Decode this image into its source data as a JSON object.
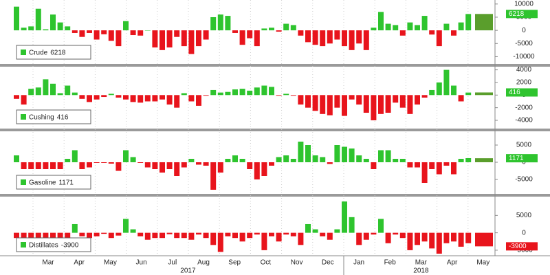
{
  "chart_data": [
    {
      "type": "bar",
      "name": "Crude",
      "color": "#2ec42e",
      "negative_color": "#e8141c",
      "ylim": [
        -12500,
        11000
      ],
      "yticks": [
        -10000,
        -5000,
        0,
        5000,
        10000
      ],
      "values": [
        9000,
        1000,
        1500,
        8200,
        400,
        6000,
        3000,
        1500,
        -1000,
        -2500,
        -1000,
        -3500,
        -1500,
        -4000,
        -6000,
        3500,
        -1800,
        -2000,
        0,
        -6500,
        -7500,
        -6500,
        -2500,
        -6000,
        -9000,
        -6000,
        -3500,
        5000,
        6000,
        5500,
        -1000,
        -5500,
        -3000,
        -6000,
        700,
        1000,
        -500,
        2500,
        2000,
        -2000,
        -4500,
        -5500,
        -6000,
        -5000,
        -3500,
        -6000,
        -7500,
        -5000,
        -7500,
        1000,
        7000,
        2500,
        2000,
        -2000,
        3000,
        2000,
        5500,
        -1600,
        -6000,
        2500,
        -2000,
        3000,
        6200,
        6218
      ]
    },
    {
      "type": "bar",
      "name": "Cushing",
      "color": "#2ec42e",
      "negative_color": "#e8141c",
      "ylim": [
        -5200,
        4500
      ],
      "yticks": [
        -4000,
        -2000,
        0,
        2000,
        4000
      ],
      "values": [
        -600,
        -1500,
        1000,
        1200,
        2500,
        1800,
        300,
        1500,
        400,
        -600,
        -1100,
        -700,
        -300,
        200,
        -400,
        -700,
        -1100,
        -1200,
        -1000,
        -1000,
        -700,
        -1500,
        -2000,
        300,
        -1000,
        -1700,
        -100,
        800,
        400,
        500,
        900,
        1000,
        700,
        1200,
        1500,
        1300,
        -100,
        200,
        -100,
        -1500,
        -2000,
        -2500,
        -3000,
        -3200,
        -2000,
        -3300,
        -700,
        -1500,
        -2800,
        -4000,
        -3000,
        -2800,
        -1200,
        -2000,
        -3000,
        -1500,
        -400,
        800,
        2000,
        4000,
        1500,
        -1000,
        400,
        416
      ]
    },
    {
      "type": "bar",
      "name": "Gasoline",
      "color": "#2ec42e",
      "negative_color": "#e8141c",
      "ylim": [
        -9000,
        9000
      ],
      "yticks": [
        -5000,
        0,
        5000
      ],
      "values": [
        2000,
        -2000,
        -2000,
        -2000,
        -2000,
        -2000,
        -2000,
        1000,
        3500,
        -2000,
        -1500,
        -200,
        -200,
        -400,
        -2500,
        3500,
        1500,
        -200,
        -1500,
        -2000,
        -3000,
        -2000,
        -4000,
        -1500,
        1000,
        -700,
        -1000,
        -8000,
        -3000,
        1000,
        2000,
        1000,
        -2000,
        -5000,
        -4000,
        -1000,
        1500,
        2000,
        1000,
        6000,
        5000,
        2000,
        1500,
        -500,
        5000,
        4500,
        4000,
        2000,
        1000,
        -2000,
        3500,
        3500,
        1000,
        1000,
        -1500,
        -1500,
        -6000,
        -2000,
        -3500,
        -1000,
        -3500,
        1000,
        1200,
        1171
      ]
    },
    {
      "type": "bar",
      "name": "Distillates",
      "color": "#2ec42e",
      "negative_color": "#e8141c",
      "ylim": [
        -6600,
        10400
      ],
      "yticks": [
        -5000,
        0,
        5000
      ],
      "values": [
        -1500,
        -1500,
        -1500,
        -1500,
        -1500,
        -1500,
        -1500,
        -1500,
        2500,
        -1000,
        -1500,
        -1000,
        -300,
        -1500,
        -800,
        4000,
        1000,
        -1000,
        -2000,
        -1500,
        -1500,
        -400,
        -1500,
        -1500,
        -2000,
        -500,
        -1500,
        -3500,
        -5500,
        -1000,
        -1500,
        -2500,
        -1500,
        -500,
        -5000,
        -1000,
        -2500,
        -500,
        -1000,
        -3500,
        2500,
        1000,
        -1000,
        -2000,
        1000,
        9000,
        4500,
        -3500,
        -2000,
        -500,
        4000,
        -3000,
        -500,
        -1500,
        -5000,
        -3500,
        -2500,
        -4500,
        -6000,
        -3000,
        -2500,
        -4000,
        -3000,
        -3900
      ]
    }
  ],
  "x_axis": {
    "months": [
      "Mar",
      "Apr",
      "May",
      "Jun",
      "Jul",
      "Aug",
      "Sep",
      "Oct",
      "Nov",
      "Dec",
      "Jan",
      "Feb",
      "Mar",
      "Apr",
      "May"
    ],
    "years": [
      "2017",
      "2018"
    ]
  }
}
